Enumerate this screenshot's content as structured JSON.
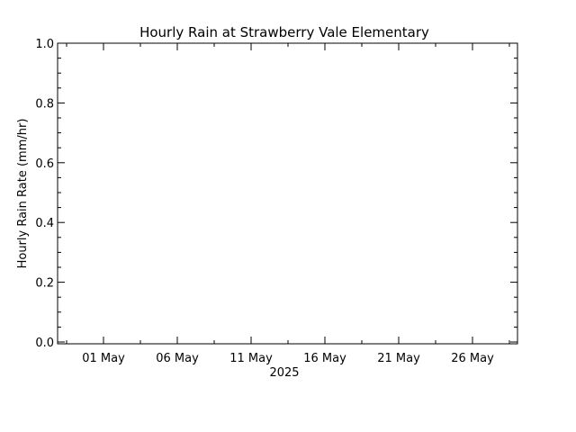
{
  "chart_data": {
    "type": "line",
    "title": "Hourly Rain at Strawberry Vale Elementary",
    "xlabel": "2025",
    "ylabel": "Hourly Rain Rate (mm/hr)",
    "x_tick_labels": [
      "01 May",
      "06 May",
      "11 May",
      "16 May",
      "21 May",
      "26 May"
    ],
    "y_tick_labels": [
      "0.0",
      "0.2",
      "0.4",
      "0.6",
      "0.8",
      "1.0"
    ],
    "ylim": [
      0.0,
      1.0
    ],
    "series": [],
    "grid": false
  },
  "colors": {
    "axis": "#000000",
    "background": "#ffffff"
  }
}
